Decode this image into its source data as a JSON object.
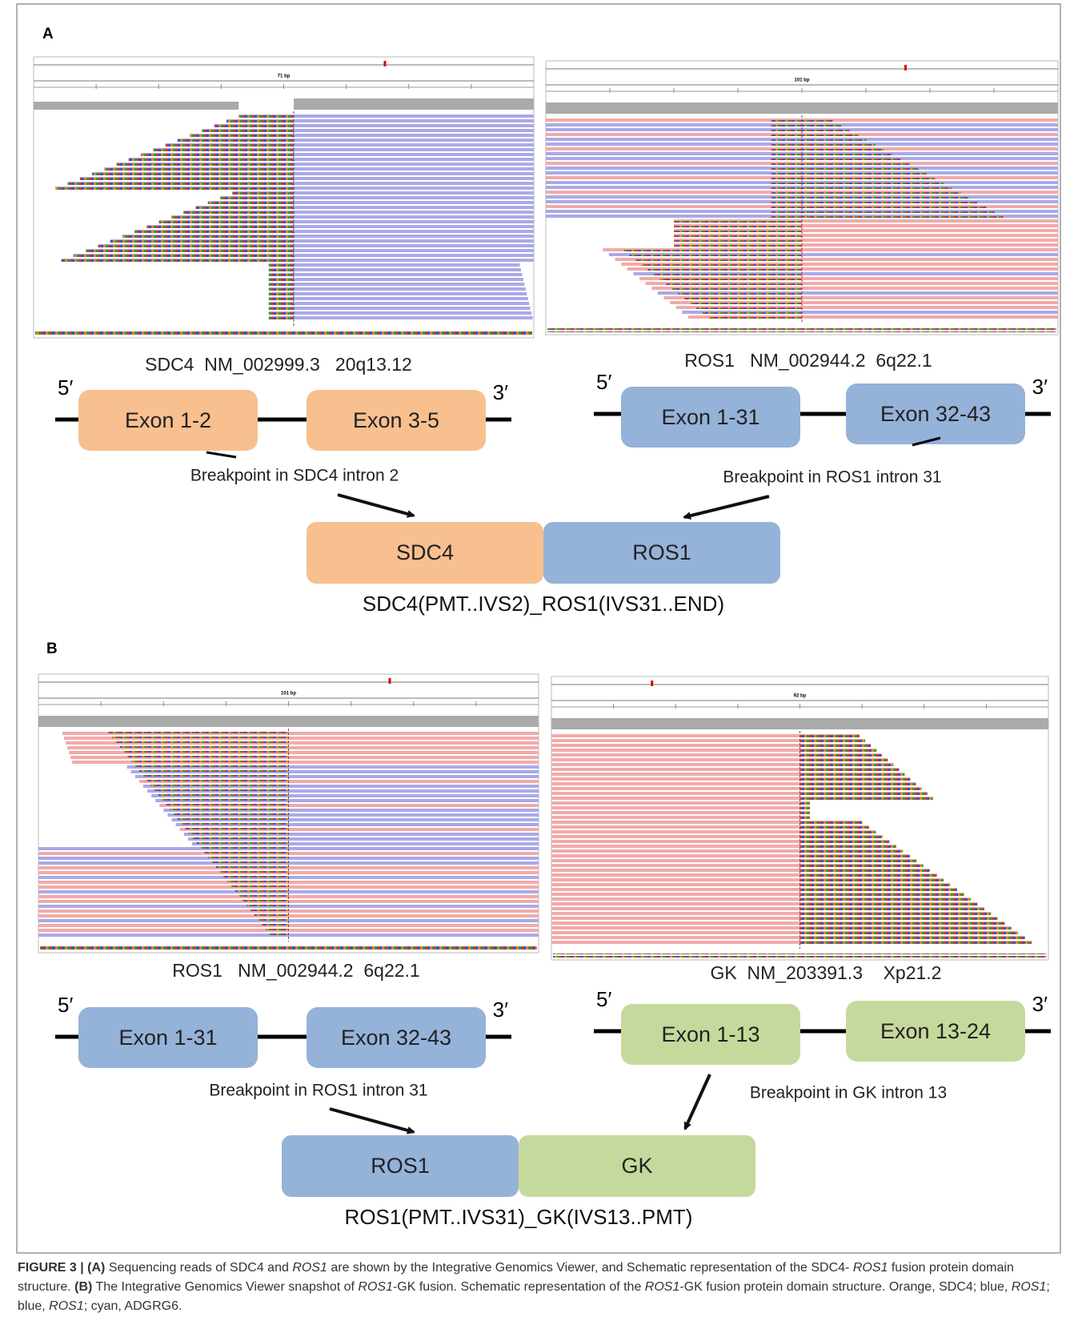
{
  "panels": [
    {
      "label": "A",
      "igv": [
        {
          "scale": "71 bp"
        },
        {
          "scale": "101 bp"
        }
      ],
      "left": {
        "gene_label": "SDC4  NM_002999.3   20q13.12",
        "five": "5′",
        "three": "3′",
        "exons": [
          "Exon 1-2",
          "Exon 3-5"
        ],
        "breakpoint": "Breakpoint in SDC4 intron 2"
      },
      "right": {
        "gene_label": "ROS1   NM_002944.2  6q22.1",
        "five": "5′",
        "three": "3′",
        "exons": [
          "Exon 1-31",
          "Exon 32-43"
        ],
        "breakpoint": "Breakpoint in ROS1 intron 31"
      },
      "fusion": [
        "SDC4",
        "ROS1"
      ],
      "fusion_name": "SDC4(PMT..IVS2)_ROS1(IVS31..END)"
    },
    {
      "label": "B",
      "igv": [
        {
          "scale": "101 bp"
        },
        {
          "scale": "92 bp"
        }
      ],
      "left": {
        "gene_label": "ROS1   NM_002944.2  6q22.1",
        "five": "5′",
        "three": "3′",
        "exons": [
          "Exon 1-31",
          "Exon 32-43"
        ],
        "breakpoint": "Breakpoint in ROS1 intron 31"
      },
      "right": {
        "gene_label": "GK  NM_203391.3    Xp21.2",
        "five": "5′",
        "three": "3′",
        "exons": [
          "Exon 1-13",
          "Exon 13-24"
        ],
        "breakpoint": "Breakpoint in GK intron 13"
      },
      "fusion": [
        "ROS1",
        "GK"
      ],
      "fusion_name": "ROS1(PMT..IVS31)_GK(IVS13..PMT)"
    }
  ],
  "caption": [
    "FIGURE 3 | (A)",
    " Sequencing reads of SDC4 and ",
    "ROS1",
    " are shown by the Integrative Genomics Viewer, and Schematic representation of the SDC4- ",
    "ROS1",
    " fusion protein domain structure. ",
    "(B)",
    " The Integrative Genomics Viewer snapshot of ",
    "ROS1",
    "-GK fusion. Schematic representation of the ",
    "ROS1",
    "-GK fusion protein domain structure. Orange, SDC4; blue, ",
    "ROS1",
    "; blue, ",
    "ROS1",
    "; cyan, ADGRG6."
  ]
}
